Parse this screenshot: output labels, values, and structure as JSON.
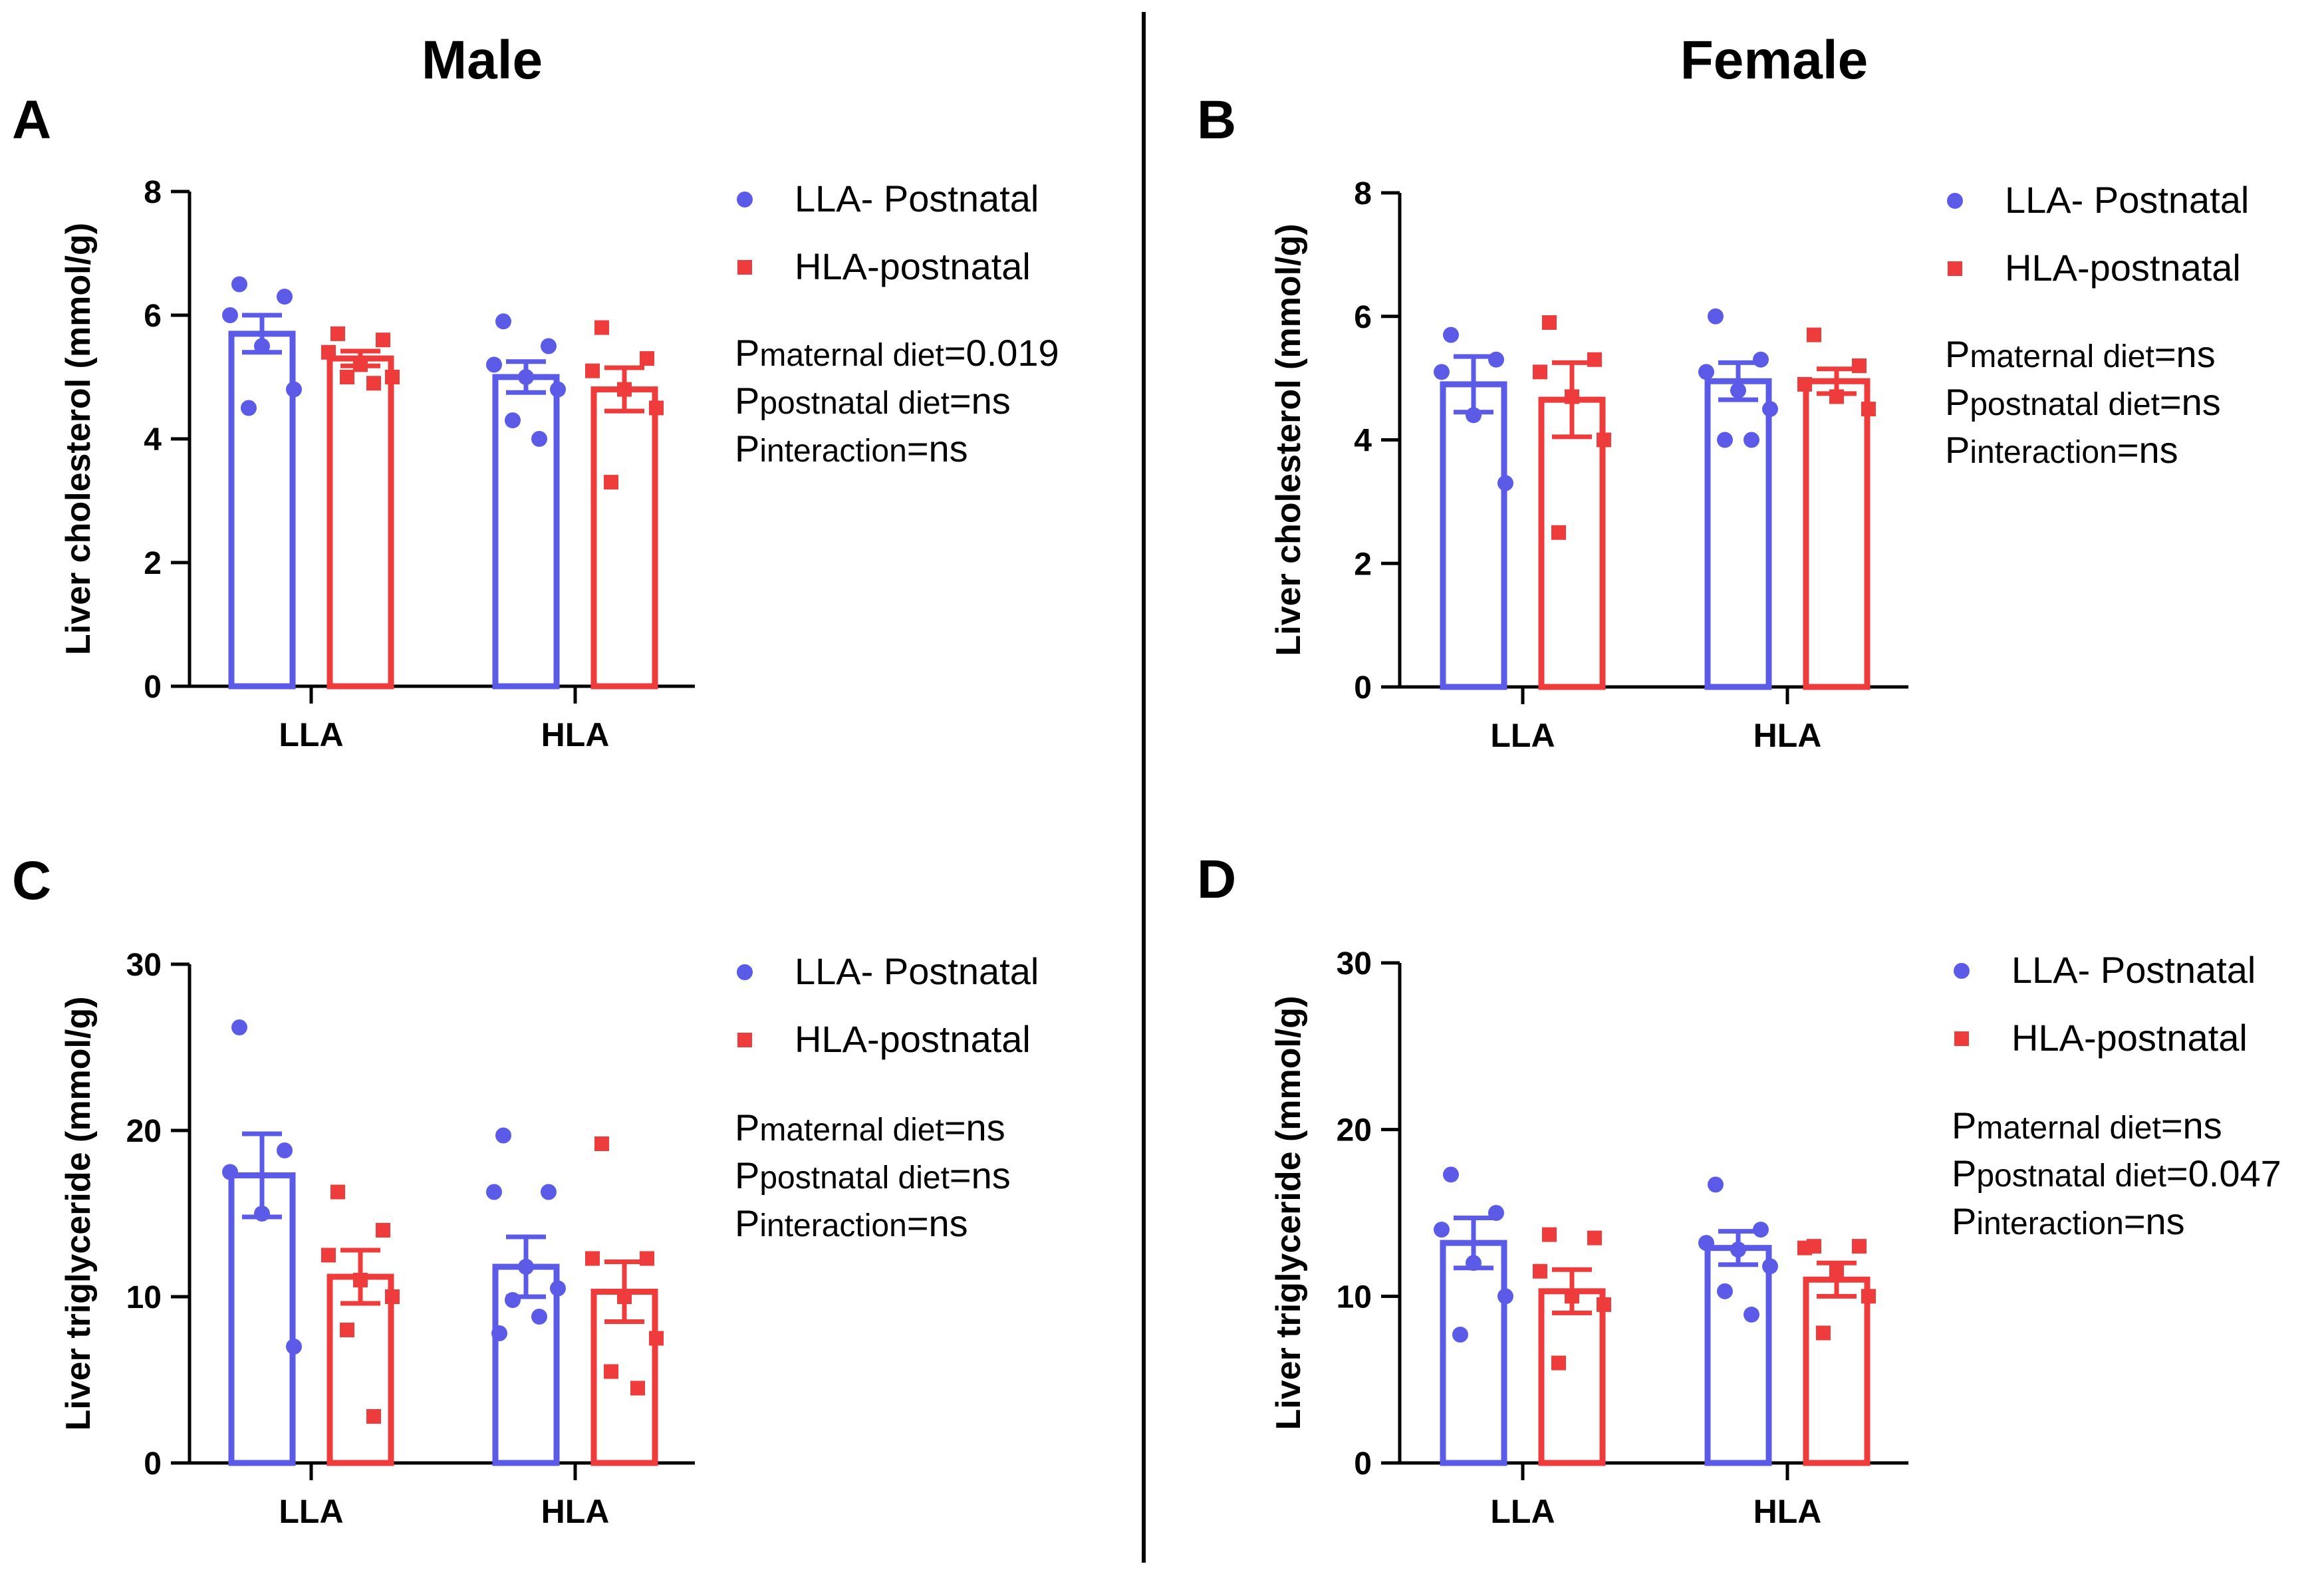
{
  "figure": {
    "titles": {
      "left": "Male",
      "right": "Female"
    },
    "colors": {
      "llaPostnatal": "#5B5BE8",
      "hlaPostnatal": "#EE3B3B",
      "axis": "#000000"
    }
  },
  "chart_data": [
    {
      "type": "bar",
      "panel": "A",
      "title": "",
      "ylabel": "Liver cholesterol (mmol/g)",
      "ylim": [
        0,
        8
      ],
      "yticks": [
        "0",
        "2",
        "4",
        "6",
        "8"
      ],
      "categories": [
        "LLA",
        "HLA"
      ],
      "legend": [
        "LLA- Postnatal",
        "HLA-postnatal"
      ],
      "series": [
        {
          "name": "LLA- Postnatal",
          "values": [
            5.7,
            5.0
          ],
          "sem": [
            0.3,
            0.25
          ],
          "points": [
            [
              6.5,
              6.3,
              6.0,
              5.5,
              4.8,
              4.5
            ],
            [
              5.9,
              5.5,
              5.2,
              5.0,
              4.8,
              4.3,
              4.0
            ]
          ]
        },
        {
          "name": "HLA-postnatal",
          "values": [
            5.3,
            4.8
          ],
          "sem": [
            0.12,
            0.35
          ],
          "points": [
            [
              5.7,
              5.6,
              5.4,
              5.2,
              5.0,
              5.0,
              4.9
            ],
            [
              5.8,
              5.3,
              5.1,
              4.8,
              4.5,
              3.3
            ]
          ]
        }
      ],
      "stats": [
        {
          "p": "P",
          "sub": "maternal diet",
          "val": "=0.019"
        },
        {
          "p": "P",
          "sub": "postnatal diet",
          "val": "=ns"
        },
        {
          "p": "P",
          "sub": "interaction",
          "val": "=ns"
        }
      ]
    },
    {
      "type": "bar",
      "panel": "B",
      "title": "",
      "ylabel": "Liver cholesterol (mmol/g)",
      "ylim": [
        0,
        8
      ],
      "yticks": [
        "0",
        "2",
        "4",
        "6",
        "8"
      ],
      "categories": [
        "LLA",
        "HLA"
      ],
      "legend": [
        "LLA- Postnatal",
        "HLA-postnatal"
      ],
      "series": [
        {
          "name": "LLA- Postnatal",
          "values": [
            4.9,
            4.95
          ],
          "sem": [
            0.45,
            0.3
          ],
          "points": [
            [
              5.7,
              5.3,
              5.1,
              4.4,
              3.3
            ],
            [
              6.0,
              5.3,
              5.1,
              4.8,
              4.5,
              4.0,
              4.0
            ]
          ]
        },
        {
          "name": "HLA-postnatal",
          "values": [
            4.65,
            4.95
          ],
          "sem": [
            0.6,
            0.2
          ],
          "points": [
            [
              5.9,
              5.3,
              5.1,
              4.7,
              4.0,
              2.5
            ],
            [
              5.7,
              5.2,
              4.9,
              4.7,
              4.5
            ]
          ]
        }
      ],
      "stats": [
        {
          "p": "P",
          "sub": "maternal diet",
          "val": "=ns"
        },
        {
          "p": "P",
          "sub": "postnatal diet",
          "val": "=ns"
        },
        {
          "p": "P",
          "sub": "interaction",
          "val": "=ns"
        }
      ]
    },
    {
      "type": "bar",
      "panel": "C",
      "title": "",
      "ylabel": "Liver triglyceride (mmol/g)",
      "ylim": [
        0,
        30
      ],
      "yticks": [
        "0",
        "10",
        "20",
        "30"
      ],
      "categories": [
        "LLA",
        "HLA"
      ],
      "legend": [
        "LLA- Postnatal",
        "HLA-postnatal"
      ],
      "series": [
        {
          "name": "LLA- Postnatal",
          "values": [
            17.3,
            11.8
          ],
          "sem": [
            2.5,
            1.8
          ],
          "points": [
            [
              26.2,
              18.8,
              17.5,
              15.0,
              7.0
            ],
            [
              19.7,
              16.3,
              16.3,
              11.8,
              10.5,
              9.8,
              8.8,
              7.8
            ]
          ]
        },
        {
          "name": "HLA-postnatal",
          "values": [
            11.2,
            10.3
          ],
          "sem": [
            1.6,
            1.8
          ],
          "points": [
            [
              16.3,
              14.0,
              12.5,
              11.0,
              10.0,
              8.0,
              2.8
            ],
            [
              19.2,
              12.3,
              12.3,
              10.0,
              7.5,
              5.5,
              4.5
            ]
          ]
        }
      ],
      "stats": [
        {
          "p": "P",
          "sub": "maternal diet",
          "val": "=ns"
        },
        {
          "p": "P",
          "sub": "postnatal diet",
          "val": "=ns"
        },
        {
          "p": "P",
          "sub": "interaction",
          "val": "=ns"
        }
      ]
    },
    {
      "type": "bar",
      "panel": "D",
      "title": "",
      "ylabel": "Liver triglyceride (mmol/g)",
      "ylim": [
        0,
        30
      ],
      "yticks": [
        "0",
        "10",
        "20",
        "30"
      ],
      "categories": [
        "LLA",
        "HLA"
      ],
      "legend": [
        "LLA- Postnatal",
        "HLA-postnatal"
      ],
      "series": [
        {
          "name": "LLA- Postnatal",
          "values": [
            13.2,
            12.9
          ],
          "sem": [
            1.5,
            1.0
          ],
          "points": [
            [
              17.3,
              15.0,
              14.0,
              12.0,
              10.0,
              7.7
            ],
            [
              16.7,
              14.0,
              13.2,
              12.8,
              11.8,
              10.3,
              8.9
            ]
          ]
        },
        {
          "name": "HLA-postnatal",
          "values": [
            10.3,
            11.0
          ],
          "sem": [
            1.3,
            1.0
          ],
          "points": [
            [
              13.7,
              13.5,
              11.5,
              10.0,
              9.5,
              6.0
            ],
            [
              13.0,
              13.0,
              12.9,
              11.5,
              10.0,
              7.8
            ]
          ]
        }
      ],
      "stats": [
        {
          "p": "P",
          "sub": "maternal diet",
          "val": "=ns"
        },
        {
          "p": "P",
          "sub": "postnatal diet",
          "val": "=0.047"
        },
        {
          "p": "P",
          "sub": "interaction",
          "val": "=ns"
        }
      ]
    }
  ]
}
